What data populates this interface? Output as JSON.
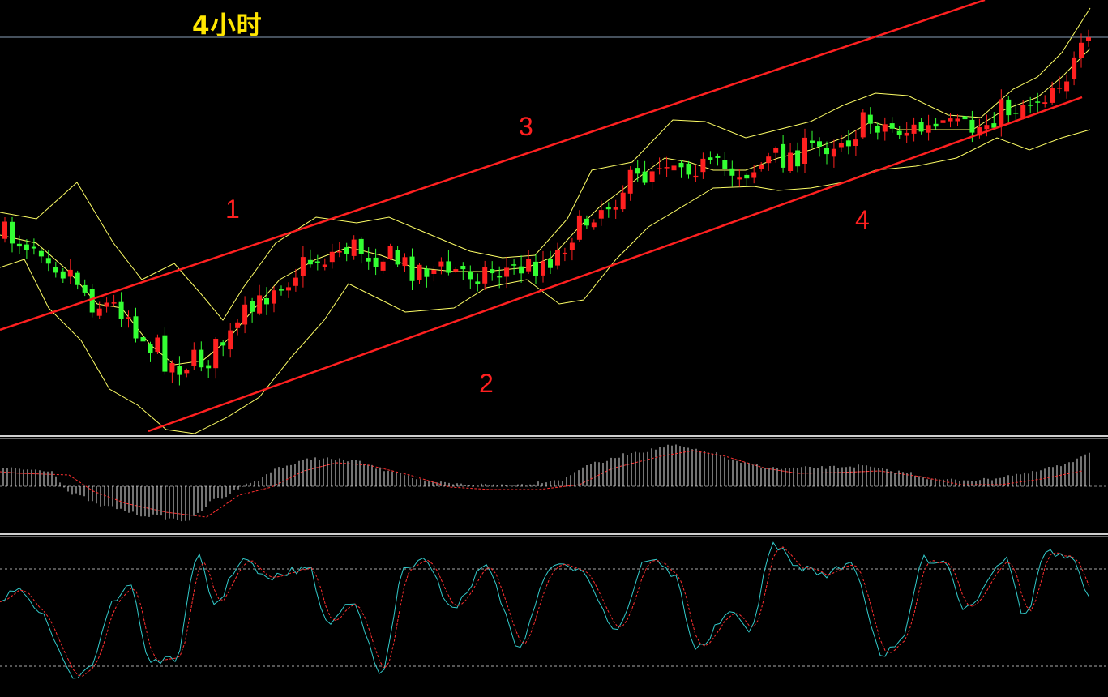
{
  "title": "4小时",
  "colors": {
    "background": "#000000",
    "bull_candle": "#ff2020",
    "bear_candle": "#33ff33",
    "bollinger": "#ffff66",
    "channel": "#ff2020",
    "macd_bar": "#e8e8e8",
    "macd_signal": "#ff3030",
    "kdj_k": "#33cccc",
    "kdj_d": "#ff3030",
    "divider": "#d0d0d0"
  },
  "annotations": [
    "1",
    "2",
    "3",
    "4"
  ],
  "chart_data": {
    "type": "candlestick",
    "panels": [
      "price",
      "macd",
      "stochastic"
    ],
    "candle_count": 150,
    "channel_lines": [
      "upper",
      "lower"
    ],
    "bollinger_bands": true
  }
}
